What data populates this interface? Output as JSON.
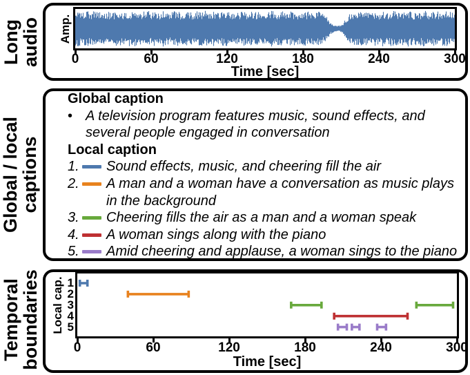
{
  "colors": {
    "blue": "#4E79AE",
    "orange": "#E8821E",
    "green": "#68A93C",
    "red": "#BE3032",
    "purple": "#9A7CC9",
    "waveform": "#4E79AE",
    "axis": "#000000"
  },
  "long_audio": {
    "label": [
      "Long",
      "audio"
    ],
    "ylabel": "Amp.",
    "xlabel": "Time [sec]",
    "xticks": [
      "0",
      "60",
      "120",
      "180",
      "240",
      "300"
    ]
  },
  "captions": {
    "label": [
      "Global / local",
      "captions"
    ],
    "global_heading": "Global caption",
    "bullet": "•",
    "global_caption": [
      "A television program features music, sound effects, and",
      "several people engaged in conversation"
    ],
    "local_heading": "Local caption",
    "items": [
      {
        "num": "1.",
        "color": "blue",
        "lines": [
          "Sound effects, music, and cheering fill the air"
        ]
      },
      {
        "num": "2.",
        "color": "orange",
        "lines": [
          "A man and a woman have a conversation as music plays",
          "in the background"
        ]
      },
      {
        "num": "3.",
        "color": "green",
        "lines": [
          "Cheering fills the air as a man and a woman speak"
        ]
      },
      {
        "num": "4.",
        "color": "red",
        "lines": [
          "A woman sings along with the piano"
        ]
      },
      {
        "num": "5.",
        "color": "purple",
        "lines": [
          "Amid cheering and applause, a woman sings to the piano"
        ]
      }
    ]
  },
  "boundaries": {
    "label": [
      "Temporal",
      "boundaries"
    ],
    "ylabel": "Local cap.",
    "xlabel": "Time [sec]",
    "yticks": [
      "1",
      "2",
      "3",
      "4",
      "5"
    ],
    "xticks": [
      "0",
      "60",
      "120",
      "180",
      "240",
      "300"
    ]
  },
  "chart_data": [
    {
      "type": "area",
      "title": "Long audio waveform",
      "xlabel": "Time [sec]",
      "ylabel": "Amp.",
      "xlim": [
        0,
        300
      ],
      "grid": false,
      "envelope_step_sec": 3,
      "envelope": [
        0.9,
        0.97,
        0.85,
        0.95,
        0.88,
        0.99,
        0.92,
        0.84,
        0.96,
        0.9,
        0.86,
        0.98,
        0.91,
        0.83,
        0.95,
        0.89,
        0.97,
        0.85,
        0.93,
        0.99,
        0.88,
        0.94,
        0.86,
        0.97,
        0.9,
        0.84,
        0.96,
        0.92,
        0.87,
        0.98,
        0.91,
        0.85,
        0.95,
        0.89,
        0.99,
        0.86,
        0.93,
        0.97,
        0.84,
        0.92,
        0.96,
        0.88,
        0.94,
        0.9,
        0.98,
        0.85,
        0.91,
        0.95,
        0.87,
        0.99,
        0.89,
        0.93,
        0.97,
        0.86,
        0.92,
        0.96,
        0.88,
        0.94,
        0.9,
        0.85,
        0.97,
        0.91,
        0.95,
        0.88,
        0.93,
        0.82,
        0.7,
        0.35,
        0.18,
        0.15,
        0.22,
        0.45,
        0.75,
        0.85,
        0.92,
        0.88,
        0.95,
        0.9,
        0.84,
        0.96,
        0.89,
        0.97,
        0.86,
        0.93,
        0.98,
        0.87,
        0.94,
        0.91,
        0.99,
        0.85,
        0.95,
        0.9,
        0.97,
        0.86,
        0.92,
        0.96,
        0.88,
        0.94,
        0.98,
        0.9,
        0.96
      ],
      "note": "dense speech/music waveform 0-300 s with quiet region near 200-212 s"
    },
    {
      "type": "line",
      "title": "Temporal boundaries of local captions",
      "xlabel": "Time [sec]",
      "ylabel": "Local cap.",
      "xlim": [
        0,
        300
      ],
      "ylim": [
        1,
        5
      ],
      "grid": false,
      "rows": [
        1,
        2,
        3,
        4,
        5
      ],
      "segments": [
        {
          "caption": 1,
          "color": "blue",
          "start": 2,
          "end": 8
        },
        {
          "caption": 2,
          "color": "orange",
          "start": 40,
          "end": 88
        },
        {
          "caption": 3,
          "color": "green",
          "start": 169,
          "end": 193
        },
        {
          "caption": 3,
          "color": "green",
          "start": 268,
          "end": 297
        },
        {
          "caption": 4,
          "color": "red",
          "start": 203,
          "end": 261
        },
        {
          "caption": 5,
          "color": "purple",
          "start": 206,
          "end": 213
        },
        {
          "caption": 5,
          "color": "purple",
          "start": 217,
          "end": 223
        },
        {
          "caption": 5,
          "color": "purple",
          "start": 237,
          "end": 244
        }
      ]
    }
  ]
}
